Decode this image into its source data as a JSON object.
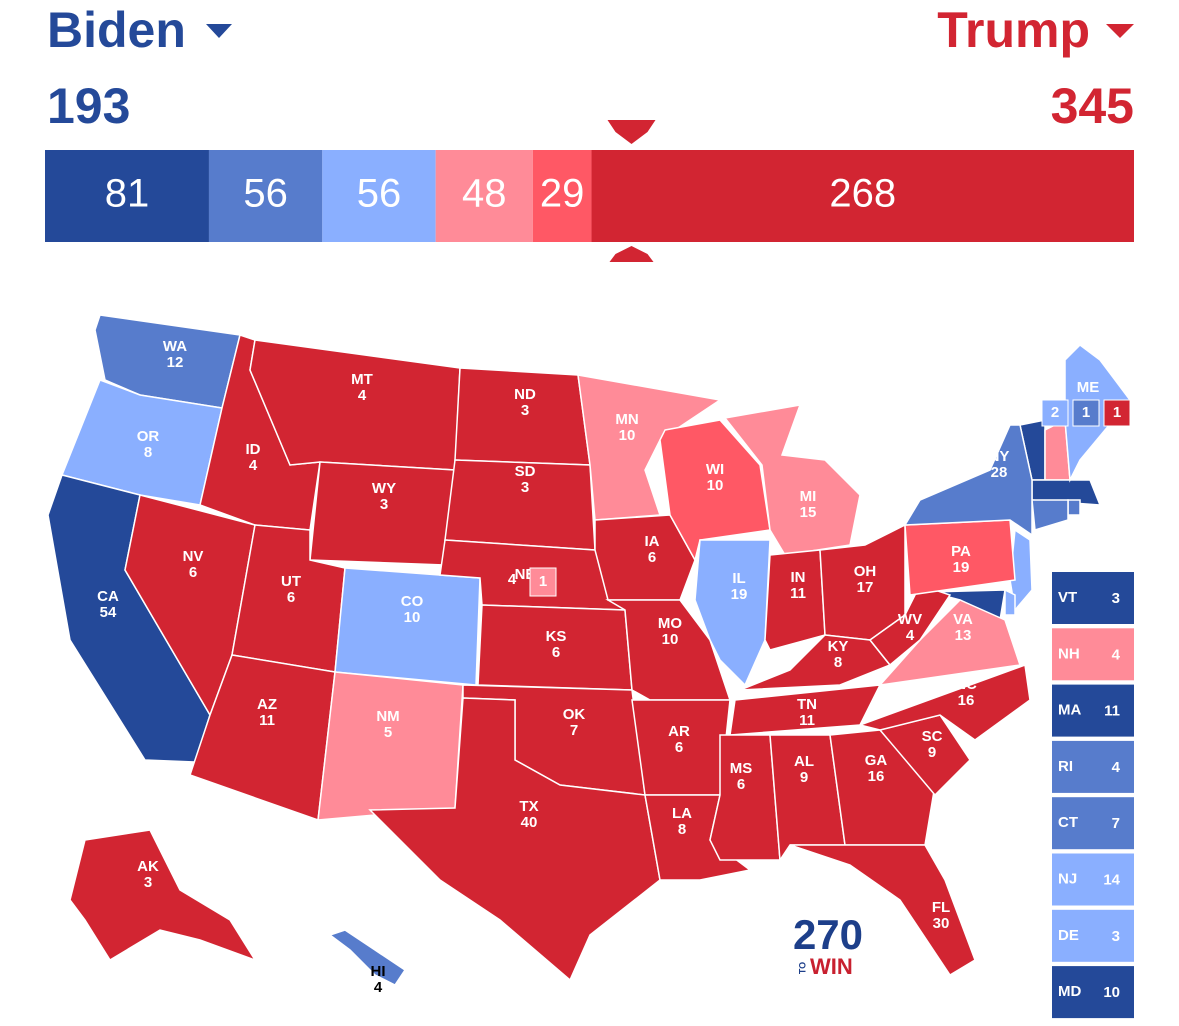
{
  "header": {
    "left_name": "Biden",
    "left_color": "#244999",
    "left_total": 193,
    "right_name": "Trump",
    "right_color": "#d22532",
    "right_total": 345
  },
  "bar": {
    "total": 538,
    "segments": [
      {
        "value": 81,
        "color": "#244999"
      },
      {
        "value": 56,
        "color": "#577ccc"
      },
      {
        "value": 56,
        "color": "#8aafff"
      },
      {
        "value": 48,
        "color": "#ff8b98"
      },
      {
        "value": 29,
        "color": "#ff5865"
      },
      {
        "value": 268,
        "color": "#d22532"
      }
    ]
  },
  "states": [
    {
      "abbr": "WA",
      "ev": 12,
      "color": "#577ccc"
    },
    {
      "abbr": "OR",
      "ev": 8,
      "color": "#8aafff"
    },
    {
      "abbr": "CA",
      "ev": 54,
      "color": "#244999"
    },
    {
      "abbr": "NV",
      "ev": 6,
      "color": "#d22532"
    },
    {
      "abbr": "ID",
      "ev": 4,
      "color": "#d22532"
    },
    {
      "abbr": "MT",
      "ev": 4,
      "color": "#d22532"
    },
    {
      "abbr": "WY",
      "ev": 3,
      "color": "#d22532"
    },
    {
      "abbr": "UT",
      "ev": 6,
      "color": "#d22532"
    },
    {
      "abbr": "AZ",
      "ev": 11,
      "color": "#d22532"
    },
    {
      "abbr": "CO",
      "ev": 10,
      "color": "#8aafff"
    },
    {
      "abbr": "NM",
      "ev": 5,
      "color": "#ff8b98"
    },
    {
      "abbr": "ND",
      "ev": 3,
      "color": "#d22532"
    },
    {
      "abbr": "SD",
      "ev": 3,
      "color": "#d22532"
    },
    {
      "abbr": "NE",
      "ev": 4,
      "color": "#d22532",
      "districts": [
        {
          "value": 1,
          "color": "#ff8b98"
        }
      ]
    },
    {
      "abbr": "KS",
      "ev": 6,
      "color": "#d22532"
    },
    {
      "abbr": "OK",
      "ev": 7,
      "color": "#d22532"
    },
    {
      "abbr": "TX",
      "ev": 40,
      "color": "#d22532"
    },
    {
      "abbr": "MN",
      "ev": 10,
      "color": "#ff8b98"
    },
    {
      "abbr": "IA",
      "ev": 6,
      "color": "#d22532"
    },
    {
      "abbr": "MO",
      "ev": 10,
      "color": "#d22532"
    },
    {
      "abbr": "AR",
      "ev": 6,
      "color": "#d22532"
    },
    {
      "abbr": "LA",
      "ev": 8,
      "color": "#d22532"
    },
    {
      "abbr": "WI",
      "ev": 10,
      "color": "#ff5865"
    },
    {
      "abbr": "IL",
      "ev": 19,
      "color": "#8aafff"
    },
    {
      "abbr": "MI",
      "ev": 15,
      "color": "#ff8b98"
    },
    {
      "abbr": "IN",
      "ev": 11,
      "color": "#d22532"
    },
    {
      "abbr": "OH",
      "ev": 17,
      "color": "#d22532"
    },
    {
      "abbr": "KY",
      "ev": 8,
      "color": "#d22532"
    },
    {
      "abbr": "TN",
      "ev": 11,
      "color": "#d22532"
    },
    {
      "abbr": "MS",
      "ev": 6,
      "color": "#d22532"
    },
    {
      "abbr": "AL",
      "ev": 9,
      "color": "#d22532"
    },
    {
      "abbr": "GA",
      "ev": 16,
      "color": "#d22532"
    },
    {
      "abbr": "FL",
      "ev": 30,
      "color": "#d22532"
    },
    {
      "abbr": "SC",
      "ev": 9,
      "color": "#d22532"
    },
    {
      "abbr": "NC",
      "ev": 16,
      "color": "#d22532"
    },
    {
      "abbr": "VA",
      "ev": 13,
      "color": "#ff8b98"
    },
    {
      "abbr": "WV",
      "ev": 4,
      "color": "#d22532"
    },
    {
      "abbr": "PA",
      "ev": 19,
      "color": "#ff5865"
    },
    {
      "abbr": "NY",
      "ev": 28,
      "color": "#577ccc"
    },
    {
      "abbr": "ME",
      "color": "#8aafff",
      "districts": [
        {
          "value": 2,
          "color": "#8aafff"
        },
        {
          "value": 1,
          "color": "#577ccc"
        },
        {
          "value": 1,
          "color": "#d22532"
        }
      ]
    },
    {
      "abbr": "AK",
      "ev": 3,
      "color": "#d22532"
    },
    {
      "abbr": "HI",
      "ev": 4,
      "color": "#577ccc"
    }
  ],
  "small_states": [
    {
      "abbr": "VT",
      "ev": 3,
      "color": "#244999"
    },
    {
      "abbr": "NH",
      "ev": 4,
      "color": "#ff8b98"
    },
    {
      "abbr": "MA",
      "ev": 11,
      "color": "#244999"
    },
    {
      "abbr": "RI",
      "ev": 4,
      "color": "#577ccc"
    },
    {
      "abbr": "CT",
      "ev": 7,
      "color": "#577ccc"
    },
    {
      "abbr": "NJ",
      "ev": 14,
      "color": "#8aafff"
    },
    {
      "abbr": "DE",
      "ev": 3,
      "color": "#8aafff"
    },
    {
      "abbr": "MD",
      "ev": 10,
      "color": "#244999"
    }
  ],
  "logo": {
    "number": "270",
    "to": "TO",
    "win": "WIN"
  }
}
